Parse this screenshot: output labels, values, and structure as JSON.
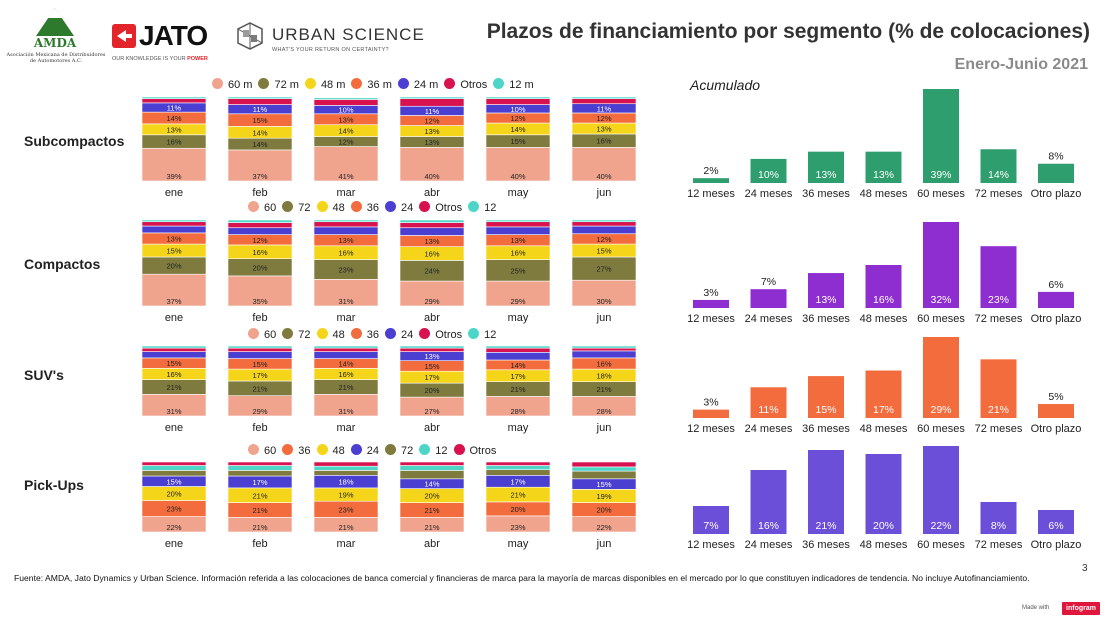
{
  "header": {
    "title": "Plazos de financiamiento por segmento (% de colocaciones)",
    "period": "Enero-Junio  2021",
    "logos": {
      "amda": "AMDA",
      "amda_sub": "Asociación Mexicana de Distribuidores de Automotores A.C.",
      "jato": "JATO",
      "jato_tagline_pre": "OUR KNOWLEDGE IS YOUR ",
      "jato_tagline_em": "POWER",
      "urban": "URBAN SCIENCE",
      "urban_sub": "WHAT'S YOUR RETURN ON CERTAINTY?"
    }
  },
  "accumulated_label": "Acumulado",
  "footer": {
    "source": "Fuente: AMDA, Jato Dynamics y Urban Science. Información referida a las colocaciones de banca comercial y financieras de marca para la mayoría de marcas disponibles en el mercado por lo que constituyen indicadores de tendencia. No incluye Autofinanciamiento.",
    "page": "3",
    "made_with": "Made with",
    "infogram": "infogram"
  },
  "colors": {
    "60": "#f0a48e",
    "72": "#7f7a3e",
    "48": "#f5d51a",
    "36": "#f36c3d",
    "24": "#4a3fd1",
    "Otros": "#d8124f",
    "12": "#4dd6c8"
  },
  "chart_data": [
    {
      "type": "bar",
      "stacked": true,
      "title": "Subcompactos",
      "categories": [
        "ene",
        "feb",
        "mar",
        "abr",
        "may",
        "jun"
      ],
      "legend": [
        "60 m",
        "72 m",
        "48 m",
        "36 m",
        "24 m",
        "Otros",
        "12 m"
      ],
      "series": [
        {
          "name": "60 m",
          "key": "60",
          "values": [
            39,
            37,
            41,
            40,
            40,
            40
          ]
        },
        {
          "name": "72 m",
          "key": "72",
          "values": [
            16,
            14,
            12,
            13,
            15,
            16
          ]
        },
        {
          "name": "48 m",
          "key": "48",
          "values": [
            13,
            14,
            14,
            13,
            14,
            13
          ]
        },
        {
          "name": "36 m",
          "key": "36",
          "values": [
            14,
            15,
            13,
            12,
            12,
            12
          ]
        },
        {
          "name": "24 m",
          "key": "24",
          "values": [
            11,
            11,
            10,
            11,
            10,
            11
          ]
        },
        {
          "name": "Otros",
          "key": "Otros",
          "values": [
            5,
            7,
            7,
            9,
            7,
            6
          ]
        },
        {
          "name": "12 m",
          "key": "12",
          "values": [
            2,
            2,
            2,
            2,
            2,
            2
          ]
        }
      ],
      "labeled_series": [
        "60 m",
        "72 m",
        "48 m",
        "36 m",
        "24 m"
      ],
      "label_threshold": 10,
      "ylim": [
        0,
        100
      ]
    },
    {
      "type": "bar",
      "title": "Subcompactos Acumulado",
      "categories": [
        "12 meses",
        "24 meses",
        "36 meses",
        "48 meses",
        "60 meses",
        "72 meses",
        "Otro plazo"
      ],
      "values": [
        2,
        10,
        13,
        13,
        39,
        14,
        8
      ],
      "color": "#2e9e6e",
      "label_inside": true
    },
    {
      "type": "bar",
      "stacked": true,
      "title": "Compactos",
      "categories": [
        "ene",
        "feb",
        "mar",
        "abr",
        "may",
        "jun"
      ],
      "legend": [
        "60",
        "72",
        "48",
        "36",
        "24",
        "Otros",
        "12"
      ],
      "series": [
        {
          "name": "60",
          "key": "60",
          "values": [
            37,
            35,
            31,
            29,
            29,
            30
          ]
        },
        {
          "name": "72",
          "key": "72",
          "values": [
            20,
            20,
            23,
            24,
            25,
            27
          ]
        },
        {
          "name": "48",
          "key": "48",
          "values": [
            15,
            16,
            16,
            16,
            16,
            15
          ]
        },
        {
          "name": "36",
          "key": "36",
          "values": [
            13,
            12,
            13,
            13,
            13,
            12
          ]
        },
        {
          "name": "24",
          "key": "24",
          "values": [
            8,
            8,
            9,
            9,
            9,
            9
          ]
        },
        {
          "name": "Otros",
          "key": "Otros",
          "values": [
            5,
            6,
            6,
            6,
            6,
            5
          ]
        },
        {
          "name": "12",
          "key": "12",
          "values": [
            2,
            3,
            2,
            3,
            2,
            2
          ]
        }
      ],
      "labeled_series": [
        "60",
        "72",
        "48",
        "36"
      ],
      "label_threshold": 10,
      "ylim": [
        0,
        100
      ]
    },
    {
      "type": "bar",
      "title": "Compactos Acumulado",
      "categories": [
        "12 meses",
        "24 meses",
        "36 meses",
        "48 meses",
        "60 meses",
        "72 meses",
        "Otro plazo"
      ],
      "values": [
        3,
        7,
        13,
        16,
        32,
        23,
        6
      ],
      "color": "#8e2ed1",
      "label_inside": true
    },
    {
      "type": "bar",
      "stacked": true,
      "title": "SUV's",
      "categories": [
        "ene",
        "feb",
        "mar",
        "abr",
        "may",
        "jun"
      ],
      "legend": [
        "60",
        "72",
        "48",
        "36",
        "24",
        "Otros",
        "12"
      ],
      "series": [
        {
          "name": "60",
          "key": "60",
          "values": [
            31,
            29,
            31,
            27,
            28,
            28
          ]
        },
        {
          "name": "72",
          "key": "72",
          "values": [
            21,
            21,
            21,
            20,
            21,
            21
          ]
        },
        {
          "name": "48",
          "key": "48",
          "values": [
            16,
            17,
            16,
            17,
            17,
            18
          ]
        },
        {
          "name": "36",
          "key": "36",
          "values": [
            15,
            15,
            14,
            15,
            14,
            16
          ]
        },
        {
          "name": "24",
          "key": "24",
          "values": [
            9,
            10,
            10,
            13,
            11,
            10
          ]
        },
        {
          "name": "Otros",
          "key": "Otros",
          "values": [
            5,
            5,
            5,
            5,
            6,
            4
          ]
        },
        {
          "name": "12",
          "key": "12",
          "values": [
            3,
            3,
            3,
            3,
            3,
            3
          ]
        }
      ],
      "labeled_series": [
        "60",
        "72",
        "48",
        "36",
        "24"
      ],
      "label_threshold": 13,
      "ylim": [
        0,
        100
      ]
    },
    {
      "type": "bar",
      "title": "SUV's Acumulado",
      "categories": [
        "12 meses",
        "24 meses",
        "36 meses",
        "48 meses",
        "60 meses",
        "72 meses",
        "Otro plazo"
      ],
      "values": [
        3,
        11,
        15,
        17,
        29,
        21,
        5
      ],
      "color": "#f36c3d",
      "label_inside": true
    },
    {
      "type": "bar",
      "stacked": true,
      "title": "Pick-Ups",
      "categories": [
        "ene",
        "feb",
        "mar",
        "abr",
        "may",
        "jun"
      ],
      "legend": [
        "60",
        "36",
        "48",
        "24",
        "72",
        "12",
        "Otros"
      ],
      "series": [
        {
          "name": "60",
          "key": "60",
          "values": [
            22,
            21,
            21,
            21,
            23,
            22
          ]
        },
        {
          "name": "36",
          "key": "36",
          "values": [
            23,
            21,
            23,
            21,
            20,
            20
          ]
        },
        {
          "name": "48",
          "key": "48",
          "values": [
            20,
            21,
            19,
            20,
            21,
            19
          ]
        },
        {
          "name": "24",
          "key": "24",
          "values": [
            15,
            17,
            18,
            14,
            17,
            15
          ]
        },
        {
          "name": "72",
          "key": "72",
          "values": [
            8,
            8,
            7,
            12,
            8,
            11
          ]
        },
        {
          "name": "12",
          "key": "12",
          "values": [
            7,
            7,
            6,
            7,
            6,
            6
          ]
        },
        {
          "name": "Otros",
          "key": "Otros",
          "values": [
            5,
            5,
            6,
            5,
            5,
            7
          ]
        }
      ],
      "labeled_series": [
        "60",
        "36",
        "48",
        "24"
      ],
      "label_threshold": 14,
      "ylim": [
        0,
        100
      ]
    },
    {
      "type": "bar",
      "title": "Pick-Ups Acumulado",
      "categories": [
        "12 meses",
        "24 meses",
        "36 meses",
        "48 meses",
        "60 meses",
        "72 meses",
        "Otro plazo"
      ],
      "values": [
        7,
        16,
        21,
        20,
        22,
        8,
        6
      ],
      "color": "#6b4fd8",
      "label_inside": true
    }
  ]
}
